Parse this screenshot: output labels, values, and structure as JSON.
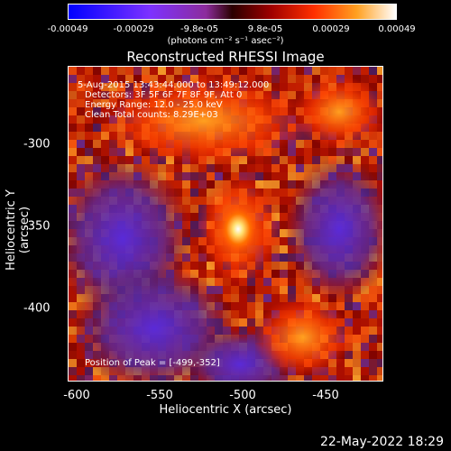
{
  "colorbar": {
    "ticks": [
      "-0.00049",
      "-0.00029",
      "-9.8e-05",
      "9.8e-05",
      "0.00029",
      "0.00049"
    ],
    "unit_label": "(photons cm⁻² s⁻¹ asec⁻²)"
  },
  "title": "Reconstructed RHESSI Image",
  "info": {
    "time": "5-Aug-2015 13:43:44.000 to 13:49:12.000",
    "detectors": "Detectors: 3F 5F 6F 7F 8F 9F, Att 0",
    "energy": "Energy Range: 12.0 - 25.0 keV",
    "clean": "Clean     Total counts: 8.29E+03",
    "peak": "Position of Peak = [-499,-352]"
  },
  "axes": {
    "xlabel": "Heliocentric X (arcsec)",
    "ylabel": "Heliocentric Y (arcsec)",
    "xticks": [
      "-600",
      "-550",
      "-500",
      "-450"
    ],
    "yticks": [
      "-300",
      "-350",
      "-400"
    ]
  },
  "timestamp": "22-May-2022 18:29",
  "colors": {
    "bg": "#000000",
    "text": "#ffffff"
  }
}
